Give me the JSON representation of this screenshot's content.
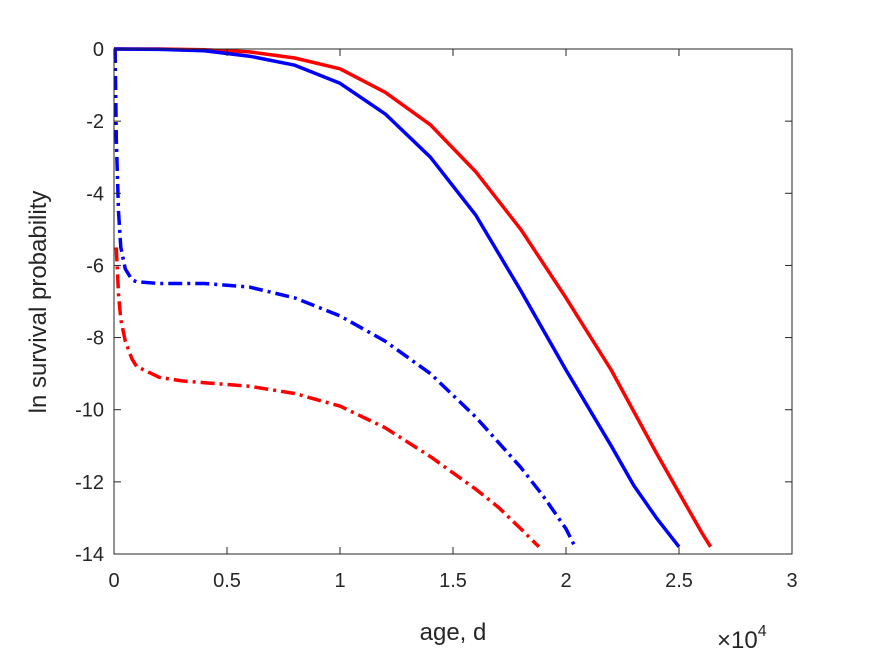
{
  "chart_data": {
    "type": "line",
    "xlabel": "age, d",
    "ylabel": "ln survival probability",
    "x_multiplier": {
      "base": "×10",
      "exponent": "4"
    },
    "xlim": [
      0,
      30000
    ],
    "ylim": [
      -14,
      0
    ],
    "x_ticks": [
      0,
      5000,
      10000,
      15000,
      20000,
      25000,
      30000
    ],
    "x_tick_labels": [
      "0",
      "0.5",
      "1",
      "1.5",
      "2",
      "2.5",
      "3"
    ],
    "y_ticks": [
      0,
      -2,
      -4,
      -6,
      -8,
      -10,
      -12,
      -14
    ],
    "y_tick_labels": [
      "0",
      "-2",
      "-4",
      "-6",
      "-8",
      "-10",
      "-12",
      "-14"
    ],
    "grid": false,
    "series": [
      {
        "color": "#ff0000",
        "style": "solid",
        "x": [
          0,
          2000,
          4000,
          6000,
          8000,
          10000,
          12000,
          14000,
          16000,
          18000,
          20000,
          22000,
          24000,
          25000,
          26000,
          26400
        ],
        "y": [
          0,
          0,
          -0.02,
          -0.08,
          -0.25,
          -0.55,
          -1.2,
          -2.1,
          -3.4,
          -5.0,
          -6.9,
          -8.9,
          -11.2,
          -12.3,
          -13.4,
          -13.8
        ]
      },
      {
        "color": "#0000ff",
        "style": "solid",
        "x": [
          0,
          2000,
          4000,
          6000,
          8000,
          10000,
          12000,
          14000,
          16000,
          18000,
          20000,
          22000,
          23000,
          24000,
          25000
        ],
        "y": [
          0,
          -0.01,
          -0.05,
          -0.2,
          -0.45,
          -0.95,
          -1.8,
          -3.0,
          -4.6,
          -6.7,
          -8.9,
          -11.0,
          -12.1,
          -13.0,
          -13.8
        ]
      },
      {
        "color": "#0000ff",
        "style": "dashdot",
        "x": [
          50,
          100,
          200,
          300,
          500,
          800,
          1000,
          2000,
          4000,
          6000,
          8000,
          10000,
          12000,
          14000,
          16000,
          18000,
          19000,
          20000,
          20400
        ],
        "y": [
          0,
          -2.5,
          -4.5,
          -5.5,
          -6.1,
          -6.4,
          -6.45,
          -6.5,
          -6.5,
          -6.6,
          -6.9,
          -7.4,
          -8.1,
          -9.0,
          -10.2,
          -11.6,
          -12.4,
          -13.3,
          -13.8
        ]
      },
      {
        "color": "#ff0000",
        "style": "dashdot",
        "x": [
          100,
          200,
          300,
          500,
          800,
          1000,
          2000,
          3000,
          4000,
          6000,
          8000,
          10000,
          12000,
          14000,
          16000,
          17000,
          18000,
          18800
        ],
        "y": [
          -5.5,
          -6.8,
          -7.5,
          -8.1,
          -8.6,
          -8.8,
          -9.1,
          -9.2,
          -9.25,
          -9.35,
          -9.55,
          -9.9,
          -10.5,
          -11.3,
          -12.2,
          -12.7,
          -13.3,
          -13.8
        ]
      }
    ]
  }
}
